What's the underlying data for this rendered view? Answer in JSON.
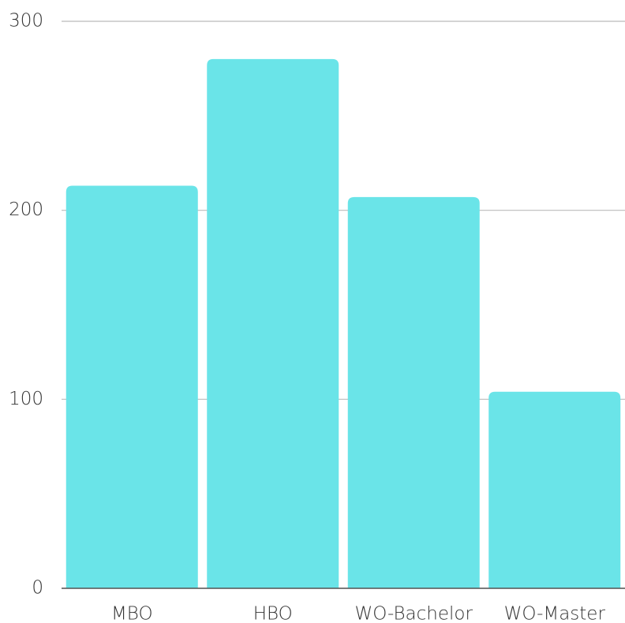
{
  "chart_data": {
    "type": "bar",
    "categories": [
      "MBO",
      "HBO",
      "WO-Bachelor",
      "WO-Master"
    ],
    "values": [
      213,
      280,
      207,
      104
    ],
    "color": "#6ae4e8",
    "ylim": [
      0,
      300
    ],
    "yticks": [
      0,
      100,
      200,
      300
    ],
    "grid": true
  }
}
